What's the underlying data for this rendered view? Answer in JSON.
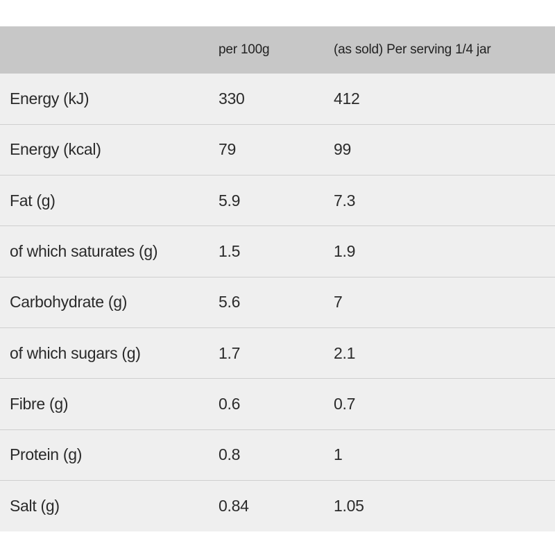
{
  "table": {
    "headers": [
      "",
      "per 100g",
      "(as sold) Per serving 1/4 jar"
    ],
    "rows": [
      [
        "Energy (kJ)",
        "330",
        "412"
      ],
      [
        "Energy (kcal)",
        "79",
        "99"
      ],
      [
        "Fat (g)",
        "5.9",
        "7.3"
      ],
      [
        "of which saturates (g)",
        "1.5",
        "1.9"
      ],
      [
        "Carbohydrate (g)",
        "5.6",
        "7"
      ],
      [
        "of which sugars (g)",
        "1.7",
        "2.1"
      ],
      [
        "Fibre (g)",
        "0.6",
        "0.7"
      ],
      [
        "Protein (g)",
        "0.8",
        "1"
      ],
      [
        "Salt (g)",
        "0.84",
        "1.05"
      ]
    ]
  },
  "colors": {
    "header_bg": "#c7c7c7",
    "row_bg": "#efefef",
    "divider": "#cfcfcf",
    "text": "#2a2a2a"
  }
}
